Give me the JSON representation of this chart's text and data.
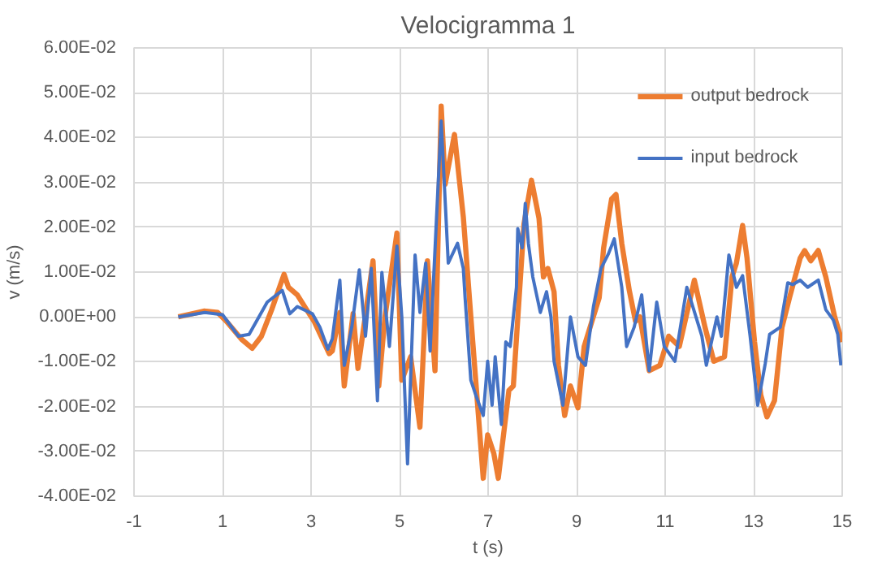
{
  "chart_data": {
    "type": "line",
    "title": "Velocigramma 1",
    "xlabel": "t (s)",
    "ylabel": "v (m/s)",
    "xlim": [
      -1,
      15
    ],
    "xticks": [
      -1,
      1,
      3,
      5,
      7,
      9,
      11,
      13,
      15
    ],
    "ylim": [
      -0.04,
      0.06
    ],
    "yticks": [
      {
        "value": -0.04,
        "label": "-4.00E-02"
      },
      {
        "value": -0.03,
        "label": "-3.00E-02"
      },
      {
        "value": -0.02,
        "label": "-2.00E-02"
      },
      {
        "value": -0.01,
        "label": "-1.00E-02"
      },
      {
        "value": 0,
        "label": "0.00E+00"
      },
      {
        "value": 0.01,
        "label": "1.00E-02"
      },
      {
        "value": 0.02,
        "label": "2.00E-02"
      },
      {
        "value": 0.03,
        "label": "3.00E-02"
      },
      {
        "value": 0.04,
        "label": "4.00E-02"
      },
      {
        "value": 0.05,
        "label": "5.00E-02"
      },
      {
        "value": 0.06,
        "label": "6.00E-02"
      }
    ],
    "grid": true,
    "legend": "top right",
    "marker": "none",
    "line_style": "solid",
    "series": [
      {
        "name": "output bedrock",
        "color": "#ed7d31",
        "x": [
          0,
          0.58,
          0.89,
          1.09,
          1.43,
          1.67,
          1.88,
          2.11,
          2.39,
          2.49,
          2.69,
          2.9,
          3.07,
          3.41,
          3.48,
          3.65,
          3.75,
          3.95,
          4.06,
          4.4,
          4.53,
          4.67,
          4.94,
          5.05,
          5.25,
          5.46,
          5.63,
          5.8,
          5.94,
          6.03,
          6.24,
          6.44,
          6.61,
          6.89,
          6.99,
          7.13,
          7.23,
          7.47,
          7.57,
          7.81,
          7.98,
          8.15,
          8.25,
          8.35,
          8.49,
          8.59,
          8.73,
          8.86,
          9.03,
          9.17,
          9.51,
          9.61,
          9.79,
          9.89,
          10.02,
          10.19,
          10.33,
          10.43,
          10.64,
          10.88,
          11.08,
          11.32,
          11.66,
          11.9,
          12.1,
          12.34,
          12.51,
          12.61,
          12.75,
          12.85,
          13.02,
          13.16,
          13.3,
          13.47,
          13.64,
          13.81,
          14.05,
          14.15,
          14.29,
          14.46,
          14.63,
          14.83,
          15
        ],
        "values": [
          0,
          0.0013,
          0.001,
          -0.001,
          -0.005,
          -0.007,
          -0.0043,
          0.0016,
          0.0095,
          0.0066,
          0.0049,
          0.0016,
          -0.001,
          -0.0082,
          -0.0076,
          0.001,
          -0.0154,
          0.0007,
          -0.0115,
          0.0125,
          -0.0154,
          0,
          0.0187,
          -0.0141,
          -0.0089,
          -0.0246,
          0.0125,
          -0.012,
          0.047,
          0.0296,
          0.0407,
          0.0223,
          0,
          -0.036,
          -0.0263,
          -0.0305,
          -0.036,
          -0.0164,
          -0.0154,
          0.0207,
          0.0305,
          0.022,
          0.0089,
          0.0108,
          0.0056,
          -0.0108,
          -0.022,
          -0.0154,
          -0.0203,
          -0.0066,
          0.0043,
          0.0154,
          0.0263,
          0.0273,
          0.0164,
          0.0059,
          -0.001,
          0,
          -0.012,
          -0.0108,
          -0.0043,
          -0.0066,
          0.0082,
          -0.0023,
          -0.0099,
          -0.0089,
          0.0089,
          0.012,
          0.0204,
          0.0131,
          -0.0056,
          -0.0174,
          -0.0223,
          -0.0187,
          -0.0023,
          0.0043,
          0.0131,
          0.0148,
          0.0125,
          0.0148,
          0.0089,
          0,
          -0.0056
        ]
      },
      {
        "name": "input bedrock",
        "color": "#4472c4",
        "x": [
          0,
          0.6,
          1.0,
          1.36,
          1.6,
          2.01,
          2.35,
          2.52,
          2.69,
          3.03,
          3.2,
          3.38,
          3.48,
          3.65,
          3.75,
          3.92,
          4.09,
          4.23,
          4.36,
          4.5,
          4.6,
          4.77,
          4.94,
          5.05,
          5.18,
          5.35,
          5.46,
          5.59,
          5.69,
          5.94,
          6.1,
          6.31,
          6.44,
          6.48,
          6.61,
          6.72,
          6.89,
          6.99,
          7.09,
          7.16,
          7.3,
          7.4,
          7.5,
          7.64,
          7.67,
          7.77,
          7.84,
          7.91,
          8.01,
          8.18,
          8.32,
          8.42,
          8.49,
          8.69,
          8.86,
          9.03,
          9.2,
          9.38,
          9.55,
          9.72,
          9.85,
          10.02,
          10.13,
          10.3,
          10.47,
          10.64,
          10.81,
          10.98,
          11.22,
          11.49,
          11.83,
          11.93,
          12.17,
          12.27,
          12.44,
          12.61,
          12.75,
          12.92,
          13.09,
          13.26,
          13.36,
          13.6,
          13.77,
          13.88,
          14.05,
          14.22,
          14.46,
          14.63,
          14.8,
          14.9,
          14.97
        ],
        "values": [
          0,
          0.001,
          0.0005,
          -0.0043,
          -0.0039,
          0.0033,
          0.0059,
          0.0007,
          0.0023,
          0.0007,
          -0.0023,
          -0.0072,
          -0.0049,
          0.0082,
          -0.0108,
          -0.0023,
          0.0105,
          -0.0043,
          0.0108,
          -0.0187,
          0.0099,
          -0.0066,
          0.0158,
          0,
          -0.0328,
          0.0138,
          0.001,
          0.012,
          -0.0076,
          0.0437,
          0.012,
          0.0164,
          0.0108,
          0.0043,
          -0.0141,
          -0.0174,
          -0.022,
          -0.0099,
          -0.0197,
          -0.0089,
          -0.024,
          -0.0056,
          -0.0066,
          0.0066,
          0.0197,
          0.0154,
          0.0253,
          0.0164,
          0.0089,
          0.001,
          0.0056,
          0,
          -0.0099,
          -0.0197,
          0,
          -0.0089,
          -0.0108,
          0.0023,
          0.0108,
          0.0141,
          0.0174,
          0.0066,
          -0.0066,
          -0.0023,
          0.0049,
          -0.012,
          0.0033,
          -0.0066,
          -0.0099,
          0.0066,
          -0.0043,
          -0.0108,
          0,
          -0.0043,
          0.0138,
          0.0066,
          0.0092,
          -0.0043,
          -0.0197,
          -0.0105,
          -0.0039,
          -0.0023,
          0.0076,
          0.0072,
          0.0082,
          0.0066,
          0.0082,
          0.0016,
          -0.0007,
          -0.0039,
          -0.0108
        ]
      }
    ]
  }
}
